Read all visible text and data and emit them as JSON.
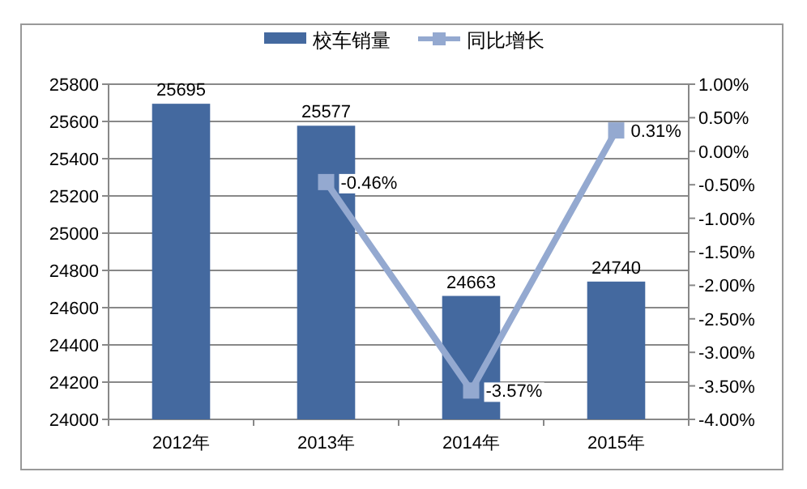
{
  "chart_data": {
    "type": "bar",
    "categories": [
      "2012年",
      "2013年",
      "2014年",
      "2015年"
    ],
    "series": [
      {
        "name": "校车销量",
        "color": "#44699f",
        "values": [
          25695,
          25577,
          24663,
          24740
        ],
        "value_labels": [
          "25695",
          "25577",
          "24663",
          "24740"
        ]
      },
      {
        "name": "同比增长",
        "type": "line",
        "axis": "y2",
        "color": "#94a9d0",
        "marker": "square",
        "values": [
          null,
          -0.46,
          -3.57,
          0.31
        ],
        "value_labels": [
          null,
          "-0.46%",
          "-3.57%",
          "0.31%"
        ]
      }
    ],
    "ylim": [
      24000,
      25800
    ],
    "yticks": [
      24000,
      24200,
      24400,
      24600,
      24800,
      25000,
      25200,
      25400,
      25600,
      25800
    ],
    "y2lim": [
      -4,
      1
    ],
    "y2ticks": [
      {
        "value": 1,
        "label": "1.00%"
      },
      {
        "value": 0.5,
        "label": "0.50%"
      },
      {
        "value": 0,
        "label": "0.00%"
      },
      {
        "value": -0.5,
        "label": "-0.50%"
      },
      {
        "value": -1,
        "label": "-1.00%"
      },
      {
        "value": -1.5,
        "label": "-1.50%"
      },
      {
        "value": -2,
        "label": "-2.00%"
      },
      {
        "value": -2.5,
        "label": "-2.50%"
      },
      {
        "value": -3,
        "label": "-3.00%"
      },
      {
        "value": -3.5,
        "label": "-3.50%"
      },
      {
        "value": -4,
        "label": "-4.00%"
      }
    ],
    "grid": "y",
    "legend": "top"
  }
}
